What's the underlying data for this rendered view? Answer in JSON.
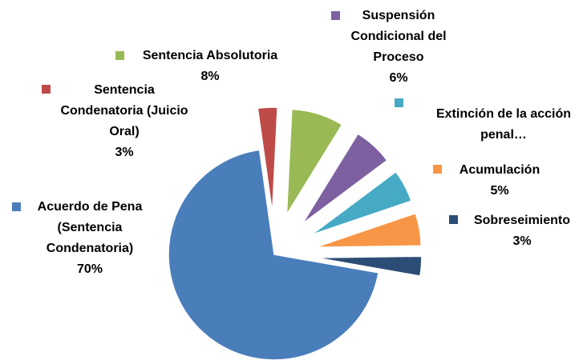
{
  "chart_data": {
    "type": "pie",
    "categories": [
      "Acuerdo de Pena (Sentencia Condenatoria)",
      "Sentencia Condenatoria (Juicio Oral)",
      "Sentencia Absolutoria",
      "Suspensión Condicional del Proceso",
      "Extinción de la acción penal…",
      "Acumulación",
      "Sobreseimiento"
    ],
    "values": [
      70,
      3,
      8,
      6,
      5,
      5,
      3
    ],
    "value_labels": [
      "70%",
      "3%",
      "8%",
      "6%",
      null,
      "5%",
      "3%"
    ],
    "colors": [
      "#4a7ebb",
      "#be4b48",
      "#98b954",
      "#7d60a0",
      "#46aac5",
      "#f79646",
      "#2c4d75"
    ]
  }
}
